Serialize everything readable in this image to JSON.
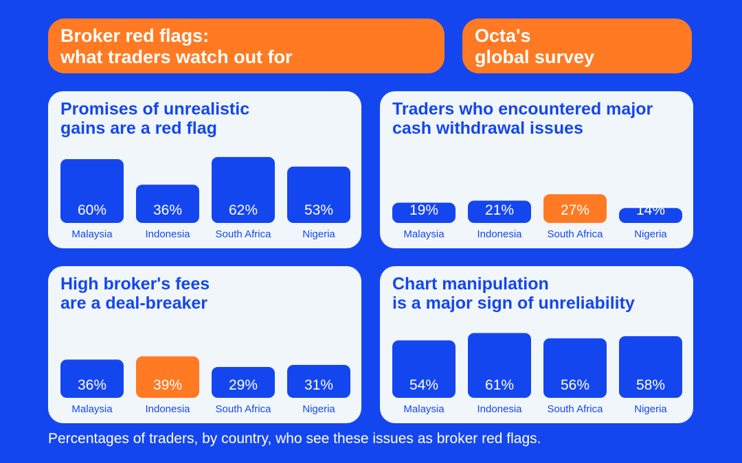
{
  "header": {
    "title_lines": [
      "Broker red flags:",
      "what traders watch out for"
    ],
    "badge_lines": [
      "Octa's",
      "global survey"
    ]
  },
  "colors": {
    "background": "#1446F0",
    "bar": "#1446F0",
    "highlight": "#FF7A22",
    "panel": "#F1F6FB",
    "text_on_bar": "#FFFFFF"
  },
  "chart_data": [
    {
      "type": "bar",
      "title_lines": [
        "Promises of unrealistic",
        "gains are a red flag"
      ],
      "categories": [
        "Malaysia",
        "Indonesia",
        "South Africa",
        "Nigeria"
      ],
      "values": [
        60,
        36,
        62,
        53
      ],
      "labels": [
        "60%",
        "36%",
        "62%",
        "53%"
      ],
      "highlight_index": null,
      "unit": "%"
    },
    {
      "type": "bar",
      "title_lines": [
        "Traders who encountered major",
        "cash withdrawal issues"
      ],
      "categories": [
        "Malaysia",
        "Indonesia",
        "South Africa",
        "Nigeria"
      ],
      "values": [
        19,
        21,
        27,
        14
      ],
      "labels": [
        "19%",
        "21%",
        "27%",
        "14%"
      ],
      "highlight_index": 2,
      "unit": "%"
    },
    {
      "type": "bar",
      "title_lines": [
        "High broker's fees",
        "are a deal-breaker"
      ],
      "categories": [
        "Malaysia",
        "Indonesia",
        "South Africa",
        "Nigeria"
      ],
      "values": [
        36,
        39,
        29,
        31
      ],
      "labels": [
        "36%",
        "39%",
        "29%",
        "31%"
      ],
      "highlight_index": 1,
      "unit": "%"
    },
    {
      "type": "bar",
      "title_lines": [
        "Chart manipulation",
        "is a major sign of unreliability"
      ],
      "categories": [
        "Malaysia",
        "Indonesia",
        "South Africa",
        "Nigeria"
      ],
      "values": [
        54,
        61,
        56,
        58
      ],
      "labels": [
        "54%",
        "61%",
        "56%",
        "58%"
      ],
      "highlight_index": null,
      "unit": "%"
    }
  ],
  "footnote": "Percentages of traders, by country, who see these issues as broker red flags."
}
